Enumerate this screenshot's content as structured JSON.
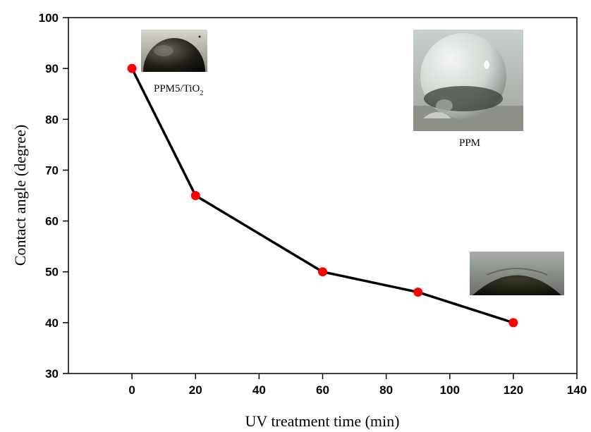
{
  "chart_data": {
    "type": "line",
    "title": "",
    "xlabel": "UV treatment time (min)",
    "ylabel": "Contact angle (degree)",
    "xlim": [
      -20,
      140
    ],
    "ylim": [
      30,
      100
    ],
    "xticks": [
      0,
      20,
      40,
      60,
      80,
      100,
      120,
      140
    ],
    "yticks": [
      30,
      40,
      50,
      60,
      70,
      80,
      90,
      100
    ],
    "grid": false,
    "series": [
      {
        "x": [
          0,
          20,
          60,
          90,
          120
        ],
        "y": [
          90,
          65,
          50,
          46,
          40
        ],
        "line_color": "#000000",
        "marker_color": "#ff0000"
      }
    ],
    "insets": [
      {
        "kind": "droplet-photo",
        "caption_main": "PPM5/TiO",
        "caption_sub": "2"
      },
      {
        "kind": "droplet-photo",
        "caption_main": "PPM",
        "caption_sub": ""
      },
      {
        "kind": "droplet-photo",
        "caption_main": "",
        "caption_sub": ""
      }
    ]
  }
}
